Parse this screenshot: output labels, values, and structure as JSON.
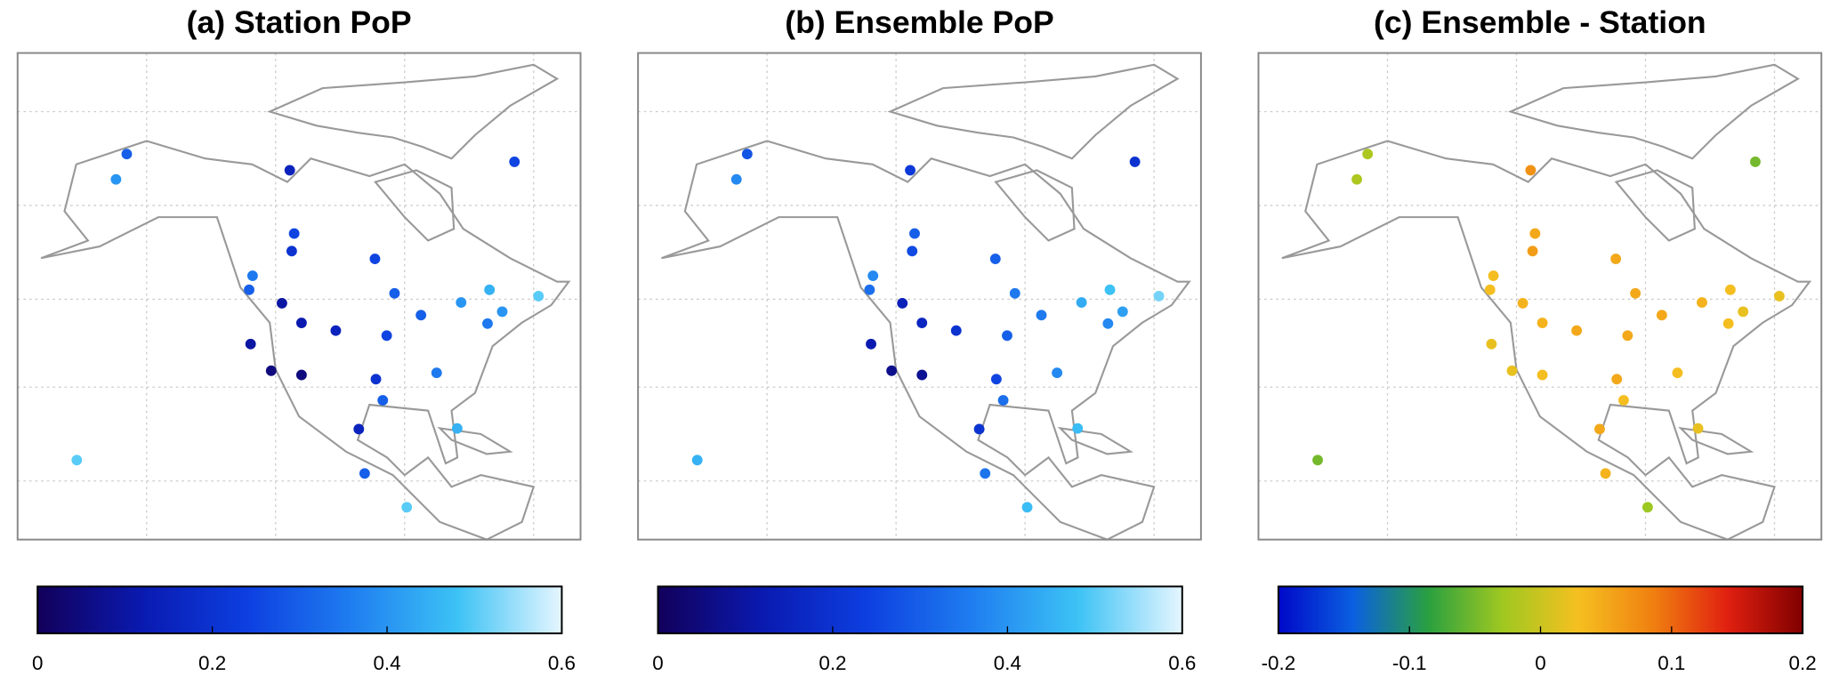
{
  "stations": {
    "lon": [
      -122,
      -122.7,
      -122.4,
      -118.2,
      -112,
      -105,
      -112,
      -116,
      -114,
      -113.5,
      -97,
      -93,
      -87.6,
      -94.6,
      -96.8,
      -95.4,
      -84.4,
      -80.2,
      -74,
      -71,
      -73.6,
      -79.4,
      -63.6,
      -99.1,
      -100.3,
      -149.9,
      -147.7,
      -114.4,
      -68.5,
      -157.9,
      -90.5
    ],
    "lat": [
      47.5,
      45.5,
      37.8,
      34,
      33.4,
      39.7,
      40.8,
      43.6,
      51,
      53.5,
      49.9,
      45,
      41.9,
      39,
      32.8,
      29.8,
      33.7,
      25.8,
      40.7,
      42.4,
      45.5,
      43.7,
      44.6,
      19.4,
      25.7,
      61.2,
      64.8,
      62.5,
      63.7,
      21.3,
      14.6
    ]
  },
  "chart_data": [
    {
      "type": "scatter",
      "title": "(a) Station PoP",
      "clim": [
        0,
        0.6
      ],
      "cticks": [
        0,
        0.2,
        0.4,
        0.6
      ],
      "colormap": [
        "#12005a",
        "#0a1ab0",
        "#0d3fe0",
        "#1f7ef0",
        "#3cc2f5",
        "#e6f6ff"
      ],
      "values": [
        0.35,
        0.3,
        0.1,
        0.05,
        0.05,
        0.15,
        0.12,
        0.1,
        0.2,
        0.25,
        0.25,
        0.3,
        0.3,
        0.25,
        0.2,
        0.3,
        0.35,
        0.45,
        0.35,
        0.4,
        0.45,
        0.4,
        0.5,
        0.3,
        0.15,
        0.4,
        0.3,
        0.15,
        0.25,
        0.5,
        0.5
      ]
    },
    {
      "type": "scatter",
      "title": "(b) Ensemble PoP",
      "clim": [
        0,
        0.6
      ],
      "cticks": [
        0,
        0.2,
        0.4,
        0.6
      ],
      "colormap": [
        "#12005a",
        "#0a1ab0",
        "#0d3fe0",
        "#1f7ef0",
        "#3cc2f5",
        "#e6f6ff"
      ],
      "values": [
        0.38,
        0.33,
        0.12,
        0.07,
        0.08,
        0.2,
        0.16,
        0.14,
        0.26,
        0.3,
        0.3,
        0.35,
        0.35,
        0.3,
        0.25,
        0.33,
        0.38,
        0.47,
        0.38,
        0.42,
        0.48,
        0.44,
        0.52,
        0.34,
        0.2,
        0.38,
        0.28,
        0.22,
        0.2,
        0.45,
        0.47
      ]
    },
    {
      "type": "scatter",
      "title": "(c) Ensemble - Station",
      "clim": [
        -0.2,
        0.2
      ],
      "cticks": [
        -0.2,
        -0.1,
        0,
        0.1,
        0.2
      ],
      "colormap": [
        "#0008c8",
        "#0a60e0",
        "#2aa040",
        "#a0c820",
        "#f5c020",
        "#f08010",
        "#e02010",
        "#800000"
      ],
      "values": [
        0.03,
        0.03,
        0.02,
        0.02,
        0.03,
        0.05,
        0.04,
        0.04,
        0.06,
        0.05,
        0.05,
        0.05,
        0.05,
        0.05,
        0.05,
        0.03,
        0.03,
        0.02,
        0.03,
        0.02,
        0.03,
        0.04,
        0.02,
        0.04,
        0.05,
        -0.02,
        -0.02,
        0.07,
        -0.05,
        -0.05,
        -0.03
      ]
    }
  ]
}
